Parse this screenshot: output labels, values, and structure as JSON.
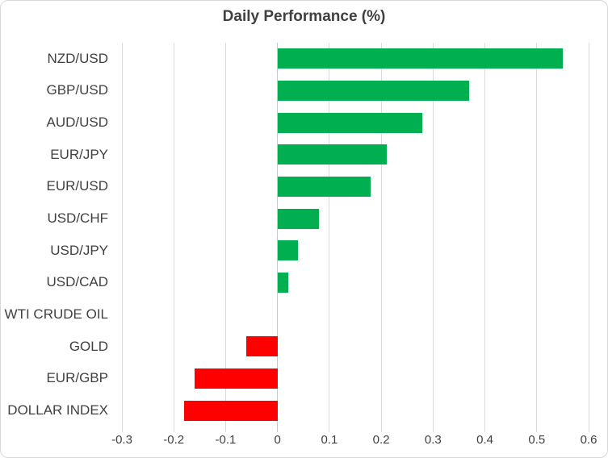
{
  "chart_data": {
    "type": "bar",
    "orientation": "horizontal",
    "title": "Daily Performance (%)",
    "categories": [
      "NZD/USD",
      "GBP/USD",
      "AUD/USD",
      "EUR/JPY",
      "EUR/USD",
      "USD/CHF",
      "USD/JPY",
      "USD/CAD",
      "WTI CRUDE OIL",
      "GOLD",
      "EUR/GBP",
      "DOLLAR INDEX"
    ],
    "values": [
      0.55,
      0.37,
      0.28,
      0.21,
      0.18,
      0.08,
      0.04,
      0.02,
      0,
      -0.06,
      -0.16,
      -0.18
    ],
    "xlim": [
      -0.3,
      0.6
    ],
    "x_ticks": [
      -0.3,
      -0.2,
      -0.1,
      0,
      0.1,
      0.2,
      0.3,
      0.4,
      0.5,
      0.6
    ],
    "x_tick_labels": [
      "-0.3",
      "-0.2",
      "-0.1",
      "0",
      "0.1",
      "0.2",
      "0.3",
      "0.4",
      "0.5",
      "0.6"
    ],
    "xlabel": "",
    "ylabel": "",
    "grid": "vertical-only",
    "legend": "none",
    "colors": {
      "positive": "#00B050",
      "negative": "#FF0000",
      "gridline": "#D9D9D9",
      "zero_axis": "#C9C9C9",
      "text": "#404040",
      "border": "#D8D8D8",
      "background": "#FFFFFF"
    }
  }
}
